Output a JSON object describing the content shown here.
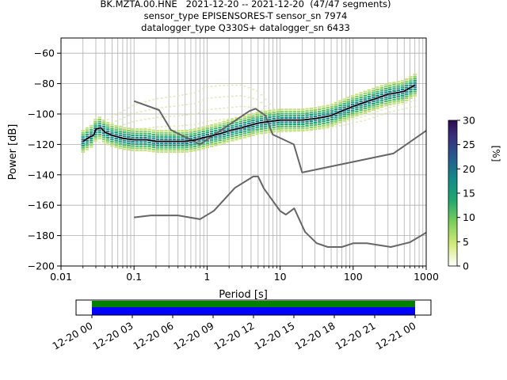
{
  "title": {
    "line1": "BK.MZTA.00.HNE   2021-12-20 -- 2021-12-20  (47/47 segments)",
    "line2": "sensor_type EPISENSORES-T sensor_sn 7974",
    "line3": "datalogger_type Q330S+ datalogger_sn 6433"
  },
  "chart_data": {
    "type": "line",
    "xlabel": "Period [s]",
    "ylabel": "Power [dB]",
    "xscale": "log",
    "xlim": [
      0.01,
      1000
    ],
    "ylim": [
      -200,
      -50
    ],
    "x_ticks": [
      "0.01",
      "0.1",
      "1",
      "10",
      "100",
      "1000"
    ],
    "y_ticks": [
      "−60",
      "−80",
      "−100",
      "−120",
      "−140",
      "−160",
      "−180",
      "−200"
    ],
    "y_tick_values": [
      -60,
      -80,
      -100,
      -120,
      -140,
      -160,
      -180,
      -200
    ],
    "grid": true,
    "series": [
      {
        "role": "mode",
        "x": [
          0.02,
          0.025,
          0.028,
          0.03,
          0.035,
          0.04,
          0.05,
          0.07,
          0.1,
          0.15,
          0.2,
          0.3,
          0.5,
          0.7,
          1,
          1.5,
          2,
          3,
          5,
          7,
          10,
          15,
          20,
          30,
          40,
          50,
          70,
          100,
          150,
          200,
          300,
          400,
          500,
          700
        ],
        "y": [
          -118,
          -115,
          -114,
          -110,
          -109,
          -112,
          -114,
          -116,
          -117,
          -117,
          -118,
          -118,
          -118,
          -117,
          -115,
          -113,
          -111,
          -109,
          -106,
          -105,
          -104,
          -104,
          -104,
          -103,
          -102,
          -101,
          -98,
          -95,
          -92,
          -90,
          -87,
          -86,
          -85,
          -81
        ]
      },
      {
        "role": "nlnm",
        "x": [
          0.1,
          0.17,
          0.4,
          0.8,
          1.24,
          2.4,
          4.3,
          5,
          6,
          10,
          12,
          15.6,
          21.9,
          31.6,
          45,
          70,
          101,
          154,
          328,
          600,
          1000
        ],
        "y": [
          -168,
          -166.7,
          -166.7,
          -169.2,
          -163.7,
          -148.6,
          -141.1,
          -141.1,
          -149,
          -163.8,
          -166.2,
          -162.1,
          -177.5,
          -185,
          -187.5,
          -187.5,
          -185,
          -185,
          -187.5,
          -184.4,
          -178
        ]
      },
      {
        "role": "nhnm",
        "x": [
          0.1,
          0.22,
          0.32,
          0.8,
          3.8,
          4.6,
          6.3,
          7.9,
          15.4,
          20,
          354.8,
          1000
        ],
        "y": [
          -91.5,
          -97.4,
          -110.5,
          -120,
          -98,
          -96.5,
          -101,
          -113.5,
          -120,
          -138.5,
          -126,
          -111
        ]
      },
      {
        "role": "envelope-upper",
        "x": [
          0.02,
          0.03,
          0.05,
          0.1,
          0.2,
          0.4,
          0.7,
          1,
          2,
          3,
          5,
          10,
          20,
          40,
          80,
          150,
          300,
          700
        ],
        "y": [
          -120,
          -108,
          -102,
          -94,
          -90,
          -88,
          -86,
          -82,
          -81,
          -81,
          -85,
          -101,
          -103,
          -100,
          -96,
          -90,
          -84,
          -76
        ]
      },
      {
        "role": "envelope-lower",
        "x": [
          0.02,
          0.03,
          0.05,
          0.1,
          0.2,
          0.5,
          0.8,
          1,
          2,
          5,
          10,
          20,
          40,
          80,
          150,
          300,
          700
        ],
        "y": [
          -124,
          -118,
          -121,
          -121,
          -121,
          -121,
          -121,
          -120,
          -118,
          -113,
          -112,
          -111,
          -110,
          -107,
          -104,
          -99,
          -95
        ]
      }
    ],
    "colorbar": {
      "label": "[%]",
      "ticks": [
        "30",
        "25",
        "20",
        "15",
        "10",
        "5",
        "0"
      ],
      "range": [
        0,
        30
      ]
    },
    "timeline": {
      "ticks": [
        "12-20 00",
        "12-20 03",
        "12-20 06",
        "12-20 09",
        "12-20 12",
        "12-20 15",
        "12-20 18",
        "12-20 21",
        "12-21 00"
      ],
      "colors": {
        "upper": "#008000",
        "lower": "#0000ff"
      },
      "coverage_fraction": 1.0
    }
  }
}
